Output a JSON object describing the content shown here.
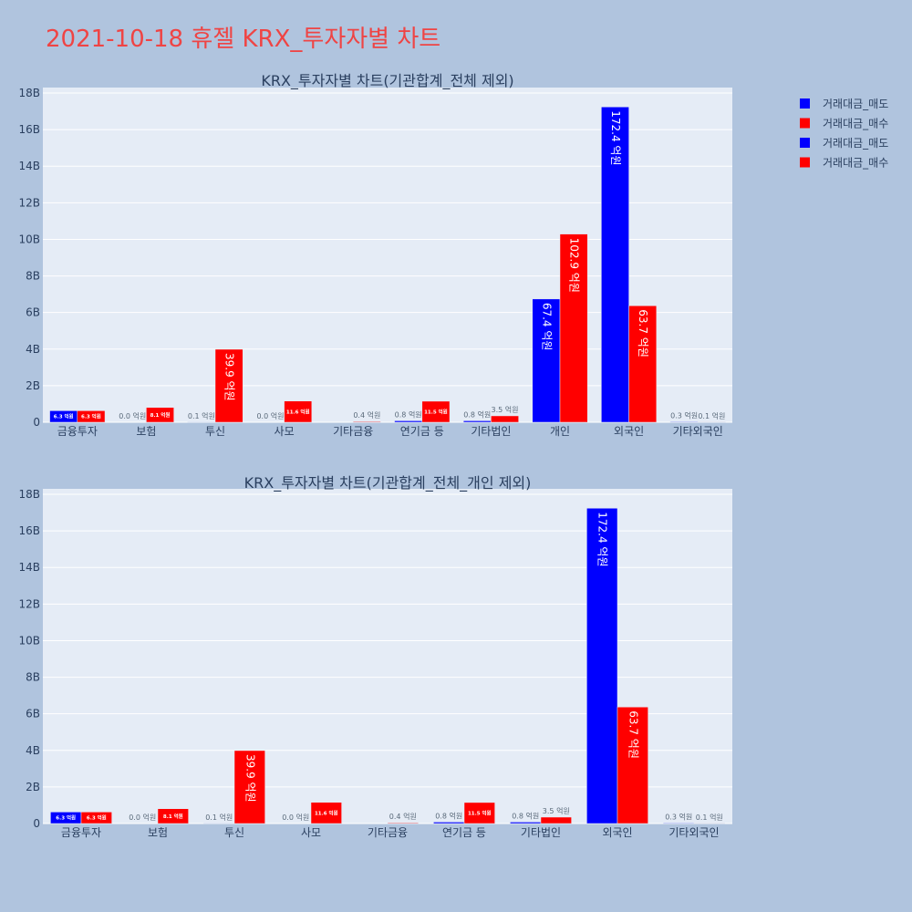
{
  "page_title": "2021-10-18 휴젤 KRX_투자자별 차트",
  "colors": {
    "sell": "#0000ff",
    "buy": "#ff0000",
    "plot_bg": "#e5ecf6",
    "paper_bg": "#b0c4de",
    "grid": "#ffffff",
    "text": "#2a3f5f",
    "title": "#ef4444"
  },
  "legend": {
    "items": [
      {
        "label": "거래대금_매도",
        "color": "#0000ff"
      },
      {
        "label": "거래대금_매수",
        "color": "#ff0000"
      },
      {
        "label": "거래대금_매도",
        "color": "#0000ff"
      },
      {
        "label": "거래대금_매수",
        "color": "#ff0000"
      }
    ]
  },
  "chart_data": [
    {
      "type": "bar",
      "title": "KRX_투자자별 차트(기관합계_전체 제외)",
      "categories": [
        "금융투자",
        "보험",
        "투신",
        "사모",
        "기타금융",
        "연기금 등",
        "기타법인",
        "개인",
        "외국인",
        "기타외국인"
      ],
      "ylim": [
        0,
        18.3
      ],
      "y_unit": "B",
      "yticks": [
        "0",
        "2B",
        "4B",
        "6B",
        "8B",
        "10B",
        "12B",
        "14B",
        "16B",
        "18B"
      ],
      "grid": true,
      "legend_position": "top-right",
      "series": [
        {
          "name": "거래대금_매도",
          "color": "#0000ff",
          "values": [
            0.63,
            0.0,
            0.01,
            0.0,
            0.0,
            0.08,
            0.08,
            6.74,
            17.24,
            0.03
          ],
          "labels": [
            "6.3 억원",
            "0.0 억원",
            "0.1 억원",
            "0.0 억원",
            "",
            "0.8 억원",
            "0.8 억원",
            "67.4 억원",
            "172.4 억원",
            "0.3 억원"
          ]
        },
        {
          "name": "거래대금_매수",
          "color": "#ff0000",
          "values": [
            0.63,
            0.81,
            3.99,
            1.16,
            0.04,
            1.15,
            0.35,
            10.29,
            6.37,
            0.01
          ],
          "labels": [
            "6.3 억원",
            "8.1 억원",
            "39.9 억원",
            "11.6 억원",
            "0.4 억원",
            "11.5 억원",
            "3.5 억원",
            "102.9 억원",
            "63.7 억원",
            "0.1 억원"
          ]
        }
      ]
    },
    {
      "type": "bar",
      "title": "KRX_투자자별 차트(기관합계_전체_개인 제외)",
      "categories": [
        "금융투자",
        "보험",
        "투신",
        "사모",
        "기타금융",
        "연기금 등",
        "기타법인",
        "외국인",
        "기타외국인"
      ],
      "ylim": [
        0,
        18.3
      ],
      "y_unit": "B",
      "yticks": [
        "0",
        "2B",
        "4B",
        "6B",
        "8B",
        "10B",
        "12B",
        "14B",
        "16B",
        "18B"
      ],
      "grid": true,
      "series": [
        {
          "name": "거래대금_매도",
          "color": "#0000ff",
          "values": [
            0.63,
            0.0,
            0.01,
            0.0,
            0.0,
            0.08,
            0.08,
            17.24,
            0.03
          ],
          "labels": [
            "6.3 억원",
            "0.0 억원",
            "0.1 억원",
            "0.0 억원",
            "",
            "0.8 억원",
            "0.8 억원",
            "172.4 억원",
            "0.3 억원"
          ]
        },
        {
          "name": "거래대금_매수",
          "color": "#ff0000",
          "values": [
            0.63,
            0.81,
            3.99,
            1.16,
            0.04,
            1.15,
            0.35,
            6.37,
            0.01
          ],
          "labels": [
            "6.3 억원",
            "8.1 억원",
            "39.9 억원",
            "11.6 억원",
            "0.4 억원",
            "11.5 억원",
            "3.5 억원",
            "63.7 억원",
            "0.1 억원"
          ]
        }
      ]
    }
  ]
}
